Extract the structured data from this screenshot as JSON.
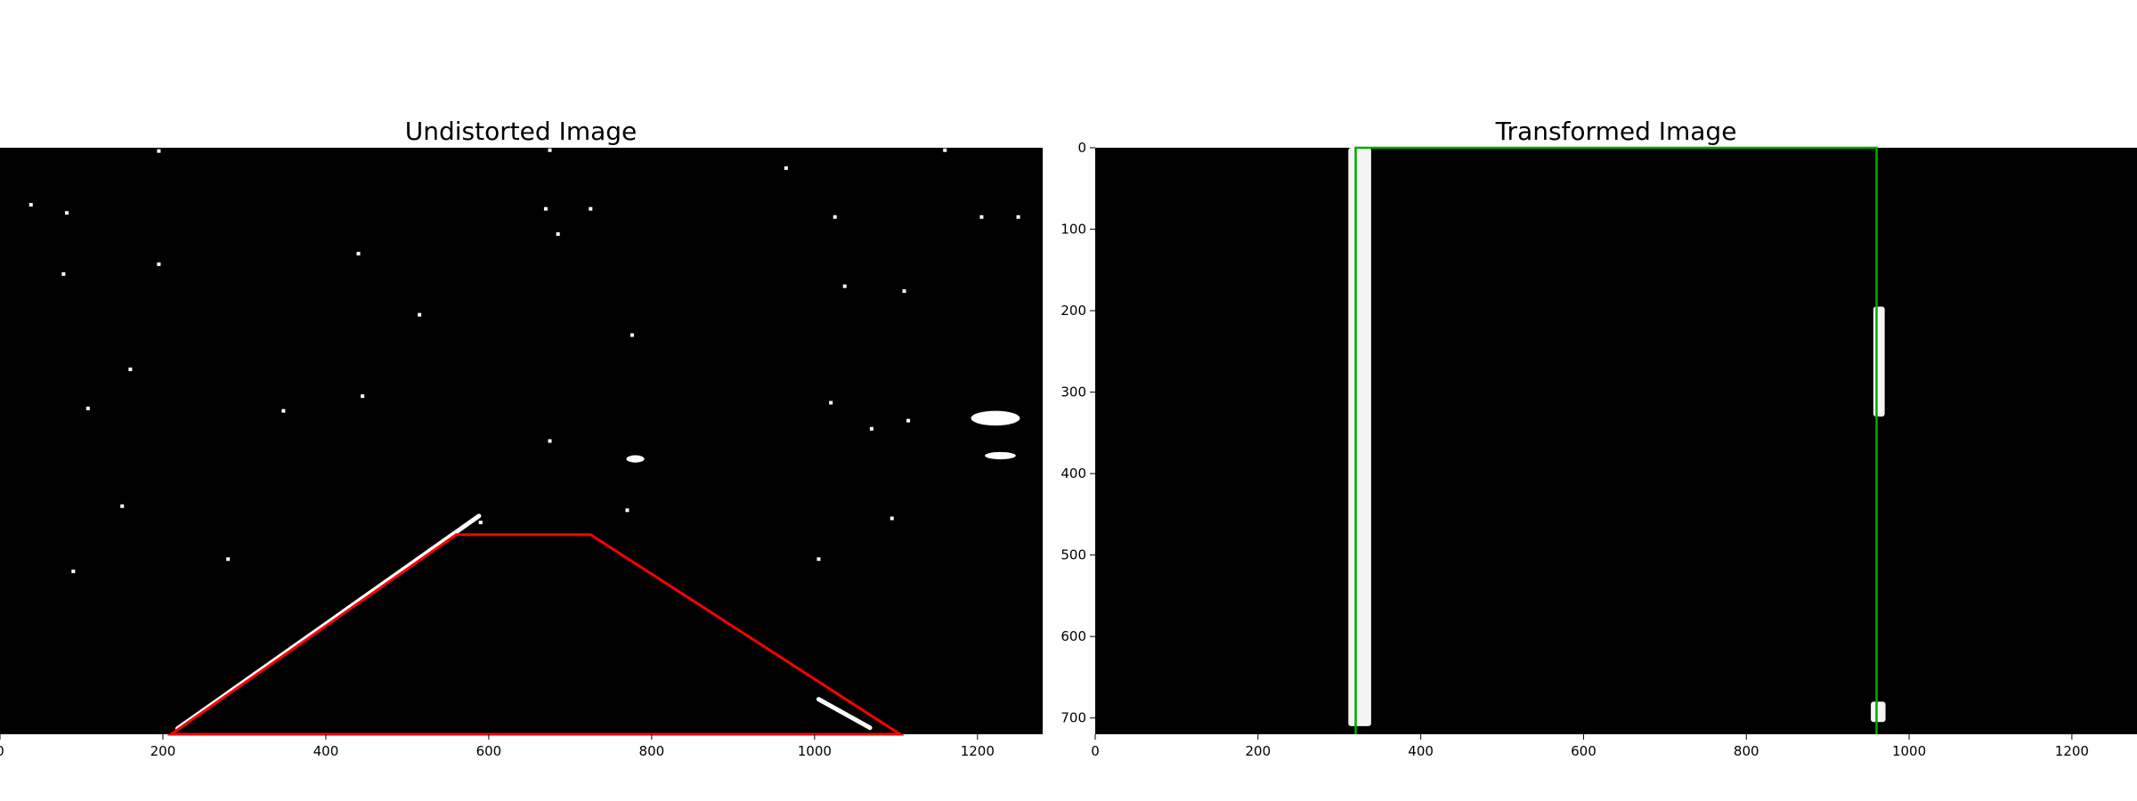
{
  "chart_data": [
    {
      "type": "image",
      "title": "Undistorted Image",
      "background": "#000000",
      "xlim": [
        0,
        1280
      ],
      "ylim": [
        720,
        0
      ],
      "x_ticks": [
        0,
        200,
        400,
        600,
        800,
        1000,
        1200
      ],
      "x_tick_labels": [
        "0",
        "200",
        "400",
        "600",
        "800",
        "1000",
        "1200"
      ],
      "y_ticks": [],
      "overlay_color": "#ff0000",
      "overlay_polygon": [
        [
          210,
          720
        ],
        [
          560,
          475
        ],
        [
          725,
          475
        ],
        [
          1105,
          720
        ]
      ],
      "lane_segments": [
        {
          "from": [
            218,
            713
          ],
          "to": [
            588,
            452
          ]
        },
        {
          "from": [
            1005,
            677
          ],
          "to": [
            1068,
            712
          ]
        }
      ],
      "noise_blobs": [
        [
          195,
          4
        ],
        [
          38,
          70
        ],
        [
          82,
          80
        ],
        [
          78,
          155
        ],
        [
          195,
          143
        ],
        [
          108,
          320
        ],
        [
          160,
          272
        ],
        [
          280,
          505
        ],
        [
          90,
          520
        ],
        [
          348,
          323
        ],
        [
          445,
          305
        ],
        [
          590,
          460
        ],
        [
          670,
          75
        ],
        [
          685,
          106
        ],
        [
          675,
          360
        ],
        [
          776,
          230
        ],
        [
          725,
          75
        ],
        [
          770,
          445
        ],
        [
          1025,
          85
        ],
        [
          1037,
          170
        ],
        [
          1005,
          505
        ],
        [
          1070,
          345
        ],
        [
          1095,
          455
        ],
        [
          1115,
          335
        ],
        [
          1205,
          85
        ],
        [
          1250,
          85
        ],
        [
          1110,
          176
        ],
        [
          675,
          3
        ],
        [
          1160,
          3
        ],
        [
          440,
          130
        ],
        [
          150,
          440
        ],
        [
          515,
          205
        ],
        [
          1020,
          313
        ],
        [
          965,
          25
        ]
      ],
      "big_blobs": [
        {
          "center": [
            1222,
            332
          ],
          "size": [
            60,
            18
          ]
        },
        {
          "center": [
            1228,
            378
          ],
          "size": [
            38,
            9
          ]
        },
        {
          "center": [
            780,
            382
          ],
          "size": [
            22,
            9
          ]
        }
      ]
    },
    {
      "type": "image",
      "title": "Transformed Image",
      "background": "#000000",
      "xlim": [
        0,
        1280
      ],
      "ylim": [
        720,
        0
      ],
      "x_ticks": [
        0,
        200,
        400,
        600,
        800,
        1000,
        1200
      ],
      "x_tick_labels": [
        "0",
        "200",
        "400",
        "600",
        "800",
        "1000",
        "1200"
      ],
      "y_ticks": [
        0,
        100,
        200,
        300,
        400,
        500,
        600,
        700
      ],
      "y_tick_labels": [
        "0",
        "100",
        "200",
        "300",
        "400",
        "500",
        "600",
        "700"
      ],
      "overlay_color": "#00aa00",
      "overlay_polygon": [
        [
          320,
          720
        ],
        [
          320,
          0
        ],
        [
          960,
          0
        ],
        [
          960,
          720
        ]
      ],
      "lane_regions": [
        {
          "x_center": 325,
          "y_range": [
            0,
            710
          ],
          "width": 28
        },
        {
          "x_center": 963,
          "y_range": [
            195,
            330
          ],
          "width": 14
        },
        {
          "x_center": 962,
          "y_range": [
            680,
            705
          ],
          "width": 18
        }
      ]
    }
  ]
}
